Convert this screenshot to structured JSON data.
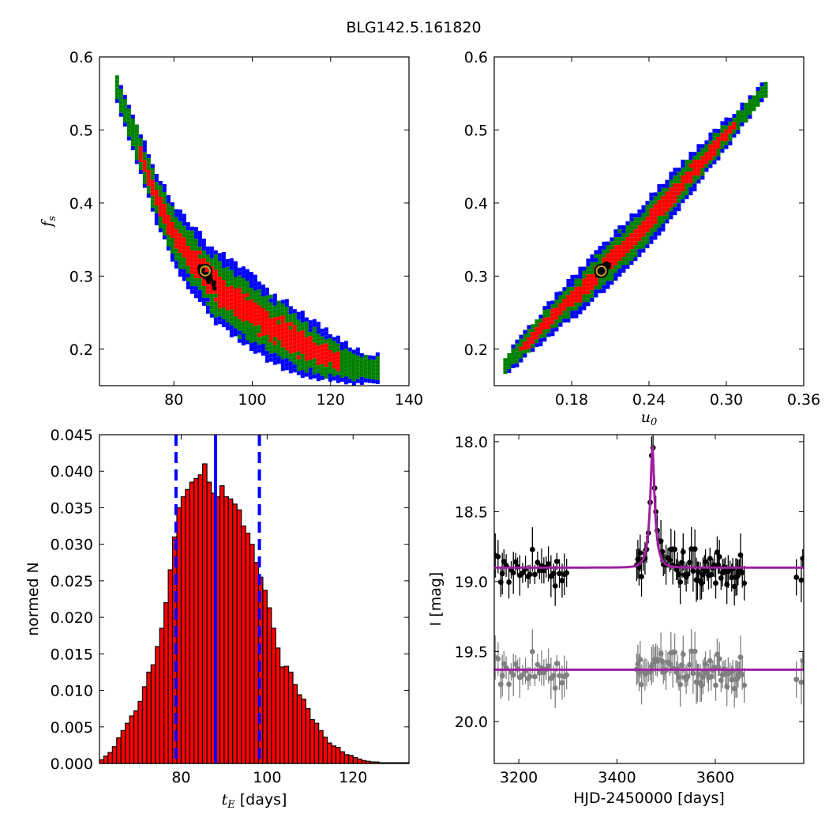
{
  "title": "BLG142.5.161820",
  "chart_data": [
    {
      "type": "heatmap",
      "panel": "fs_vs_tE",
      "xlabel": "",
      "ylabel": "f_s",
      "xlim": [
        61,
        140
      ],
      "ylim": [
        0.15,
        0.6
      ],
      "xticks": [
        80,
        100,
        120,
        140
      ],
      "xtick_labels": [
        "80",
        "100",
        "120",
        "140"
      ],
      "yticks": [
        0.2,
        0.3,
        0.4,
        0.5,
        0.6
      ],
      "ytick_labels": [
        "0.2",
        "0.3",
        "0.4",
        "0.5",
        "0.6"
      ],
      "best_fit": {
        "x": 88,
        "y": 0.307
      },
      "ridge": [
        [
          65,
          0.56
        ],
        [
          70,
          0.485
        ],
        [
          75,
          0.41
        ],
        [
          80,
          0.355
        ],
        [
          85,
          0.32
        ],
        [
          90,
          0.29
        ],
        [
          95,
          0.268
        ],
        [
          100,
          0.25
        ],
        [
          105,
          0.232
        ],
        [
          110,
          0.215
        ],
        [
          115,
          0.202
        ],
        [
          120,
          0.19
        ],
        [
          125,
          0.18
        ],
        [
          132,
          0.175
        ]
      ],
      "levels": [
        "black",
        "red",
        "green",
        "blue"
      ],
      "colors": {
        "black": "#000000",
        "red": "#ff0000",
        "green": "#008000",
        "blue": "#0000ff",
        "marker": "#bfa620"
      }
    },
    {
      "type": "heatmap",
      "panel": "fs_vs_u0",
      "xlabel": "u_0",
      "ylabel": "",
      "xlim": [
        0.12,
        0.36
      ],
      "ylim": [
        0.15,
        0.6
      ],
      "xticks": [
        0.18,
        0.24,
        0.3,
        0.36
      ],
      "xtick_labels": [
        "0.18",
        "0.24",
        "0.30",
        "0.36"
      ],
      "yticks": [
        0.2,
        0.3,
        0.4,
        0.5,
        0.6
      ],
      "ytick_labels": [
        "0.2",
        "0.3",
        "0.4",
        "0.5",
        "0.6"
      ],
      "best_fit": {
        "x": 0.203,
        "y": 0.307
      },
      "ridge": [
        [
          0.127,
          0.18
        ],
        [
          0.15,
          0.222
        ],
        [
          0.17,
          0.258
        ],
        [
          0.19,
          0.29
        ],
        [
          0.21,
          0.325
        ],
        [
          0.23,
          0.36
        ],
        [
          0.25,
          0.4
        ],
        [
          0.27,
          0.44
        ],
        [
          0.29,
          0.48
        ],
        [
          0.31,
          0.52
        ],
        [
          0.33,
          0.56
        ]
      ],
      "levels": [
        "black",
        "red",
        "green",
        "blue"
      ]
    },
    {
      "type": "bar",
      "panel": "tE_histogram",
      "xlabel": "t_E [days]",
      "ylabel": "normed N",
      "xlim": [
        61,
        133
      ],
      "ylim": [
        0,
        0.045
      ],
      "xticks": [
        80,
        100,
        120
      ],
      "xtick_labels": [
        "80",
        "100",
        "120"
      ],
      "yticks": [
        0,
        0.005,
        0.01,
        0.015,
        0.02,
        0.025,
        0.03,
        0.035,
        0.04,
        0.045
      ],
      "ytick_labels": [
        "0.000",
        "0.005",
        "0.010",
        "0.015",
        "0.020",
        "0.025",
        "0.030",
        "0.035",
        "0.040",
        "0.045"
      ],
      "bin_start": 61,
      "bin_width": 1,
      "values": [
        0.0005,
        0.001,
        0.0015,
        0.0023,
        0.0035,
        0.0045,
        0.0055,
        0.0065,
        0.0072,
        0.0085,
        0.0105,
        0.0125,
        0.0135,
        0.016,
        0.0185,
        0.022,
        0.0265,
        0.031,
        0.035,
        0.0365,
        0.0375,
        0.0385,
        0.039,
        0.0395,
        0.041,
        0.0385,
        0.037,
        0.0365,
        0.038,
        0.0365,
        0.0362,
        0.0355,
        0.0347,
        0.0325,
        0.0315,
        0.03,
        0.0275,
        0.0255,
        0.0237,
        0.0213,
        0.0185,
        0.0158,
        0.0132,
        0.0133,
        0.0125,
        0.0108,
        0.0094,
        0.0088,
        0.0075,
        0.006,
        0.0055,
        0.0045,
        0.0036,
        0.0028,
        0.0024,
        0.0022,
        0.0016,
        0.0012,
        0.0011,
        0.0008,
        0.0006,
        0.0004,
        0.0003,
        0.0002,
        0.0002,
        0.0001,
        0.0001,
        0.0001,
        0.0001,
        0.0001,
        0.0001,
        0.0001
      ],
      "median": 88,
      "interval": [
        78.8,
        98.2
      ],
      "colors": {
        "bar": "#ff0000",
        "edge": "#000000",
        "vline": "#0000ff"
      }
    },
    {
      "type": "scatter",
      "panel": "light_curve",
      "xlabel": "HJD-2450000 [days]",
      "ylabel": "I [mag]",
      "xlim": [
        3150,
        3780
      ],
      "ylim": [
        20.3,
        17.95
      ],
      "y_inverted": true,
      "xticks": [
        3200,
        3400,
        3600
      ],
      "xtick_labels": [
        "3200",
        "3400",
        "3600"
      ],
      "yticks": [
        18.0,
        18.5,
        19.0,
        19.5,
        20.0
      ],
      "ytick_labels": [
        "18.0",
        "18.5",
        "19.0",
        "19.5",
        "20.0"
      ],
      "model": {
        "t0": 3472,
        "tE": 88,
        "u0": 0.203,
        "fs": 0.307,
        "baseline": 18.9
      },
      "residual_baseline": 19.63,
      "series": [
        {
          "role": "data",
          "color": "#000000"
        },
        {
          "role": "residual",
          "color": "#808080"
        },
        {
          "role": "model",
          "color": "#a020a0"
        }
      ]
    }
  ]
}
